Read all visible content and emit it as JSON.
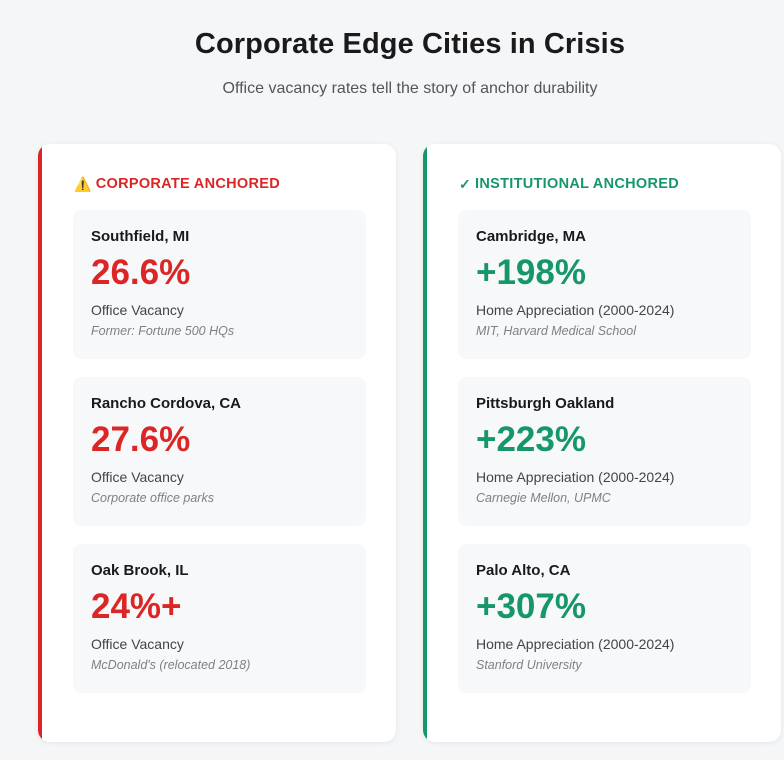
{
  "header": {
    "title": "Corporate Edge Cities in Crisis",
    "subtitle": "Office vacancy rates tell the story of anchor durability"
  },
  "colors": {
    "corporate_accent": "#dc2626",
    "institutional_accent": "#16976a"
  },
  "corporate": {
    "icon": "warning-icon",
    "icon_glyph": "⚠️",
    "heading": "CORPORATE ANCHORED",
    "cards": [
      {
        "name": "Southfield, MI",
        "value": "26.6%",
        "label": "Office Vacancy",
        "note": "Former: Fortune 500 HQs"
      },
      {
        "name": "Rancho Cordova, CA",
        "value": "27.6%",
        "label": "Office Vacancy",
        "note": "Corporate office parks"
      },
      {
        "name": "Oak Brook, IL",
        "value": "24%+",
        "label": "Office Vacancy",
        "note": "McDonald's (relocated 2018)"
      }
    ]
  },
  "institutional": {
    "icon": "check-icon",
    "icon_glyph": "✓",
    "heading": "INSTITUTIONAL ANCHORED",
    "cards": [
      {
        "name": "Cambridge, MA",
        "value": "+198%",
        "label": "Home Appreciation (2000-2024)",
        "note": "MIT, Harvard Medical School"
      },
      {
        "name": "Pittsburgh Oakland",
        "value": "+223%",
        "label": "Home Appreciation (2000-2024)",
        "note": "Carnegie Mellon, UPMC"
      },
      {
        "name": "Palo Alto, CA",
        "value": "+307%",
        "label": "Home Appreciation (2000-2024)",
        "note": "Stanford University"
      }
    ]
  }
}
